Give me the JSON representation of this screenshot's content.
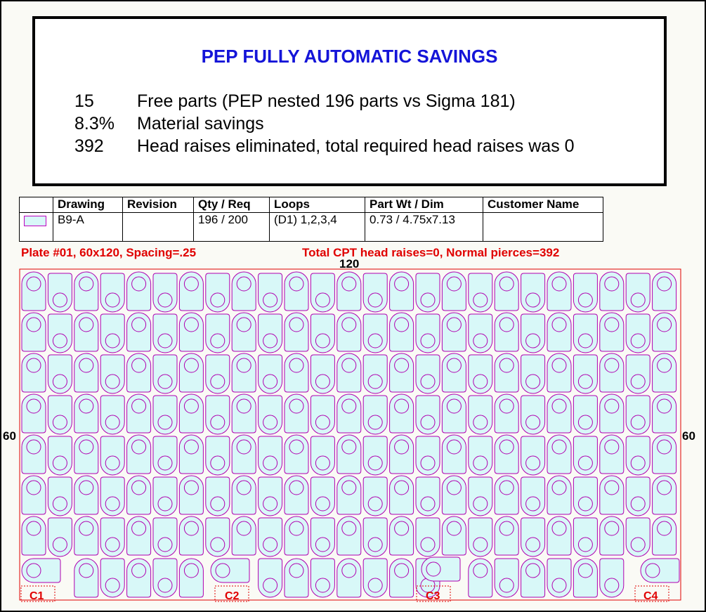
{
  "savings": {
    "title": "PEP FULLY AUTOMATIC SAVINGS",
    "rows": [
      {
        "value": "15",
        "text": "Free parts (PEP nested 196 parts vs Sigma 181)"
      },
      {
        "value": "8.3%",
        "text": "Material savings"
      },
      {
        "value": "392",
        "text": "Head raises eliminated, total required head raises was 0"
      }
    ]
  },
  "table": {
    "headers": [
      "",
      "Drawing",
      "Revision",
      "Qty / Req",
      "Loops",
      "Part Wt / Dim",
      "Customer Name"
    ],
    "row": {
      "drawing": "B9-A",
      "revision": "",
      "qty": "196 / 200",
      "loops": "(D1)  1,2,3,4",
      "part_wt_dim": "0.73 / 4.75x7.13",
      "customer": ""
    }
  },
  "plate": {
    "info": "Plate #01, 60x120, Spacing=.25",
    "stats": "Total CPT head raises=0, Normal pierces=392",
    "width_label": "120",
    "height_label_left": "60",
    "height_label_right": "60",
    "corners": [
      "C1",
      "C2",
      "C3",
      "C4"
    ]
  },
  "colors": {
    "part_fill": "#d8f8f8",
    "part_stroke": "#b000b0",
    "plate_border": "#e00000",
    "title_blue": "#1414d8"
  }
}
